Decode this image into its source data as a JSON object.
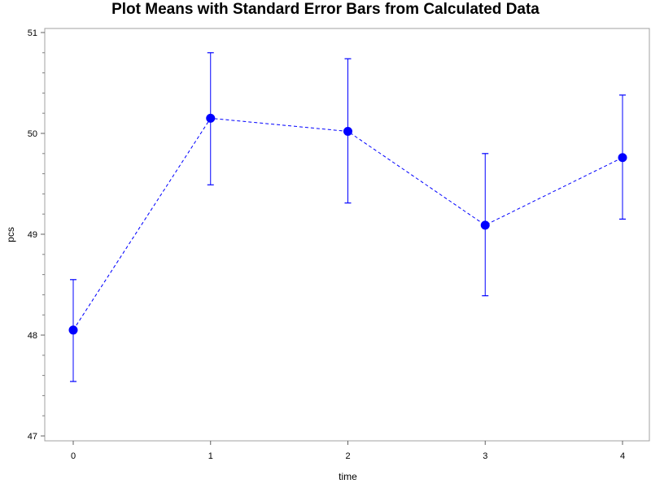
{
  "chart_data": {
    "type": "line",
    "title": "Plot Means with Standard Error Bars from Calculated Data",
    "xlabel": "time",
    "ylabel": "pcs",
    "x": [
      0,
      1,
      2,
      3,
      4
    ],
    "x_ticks": [
      "0",
      "1",
      "2",
      "3",
      "4"
    ],
    "y_ticks": [
      "47",
      "48",
      "49",
      "50",
      "51"
    ],
    "xlim": [
      -0.2,
      4.2
    ],
    "ylim": [
      47,
      51
    ],
    "series": [
      {
        "values": [
          48.05,
          50.15,
          50.02,
          49.09,
          49.76
        ],
        "lower": [
          47.54,
          49.49,
          49.31,
          48.39,
          49.15
        ],
        "upper": [
          48.55,
          50.8,
          50.74,
          49.8,
          50.38
        ],
        "color": "#0000ff",
        "line_style": "dashed",
        "marker": "filled-circle"
      }
    ],
    "grid": false,
    "minor_ticks": true
  }
}
